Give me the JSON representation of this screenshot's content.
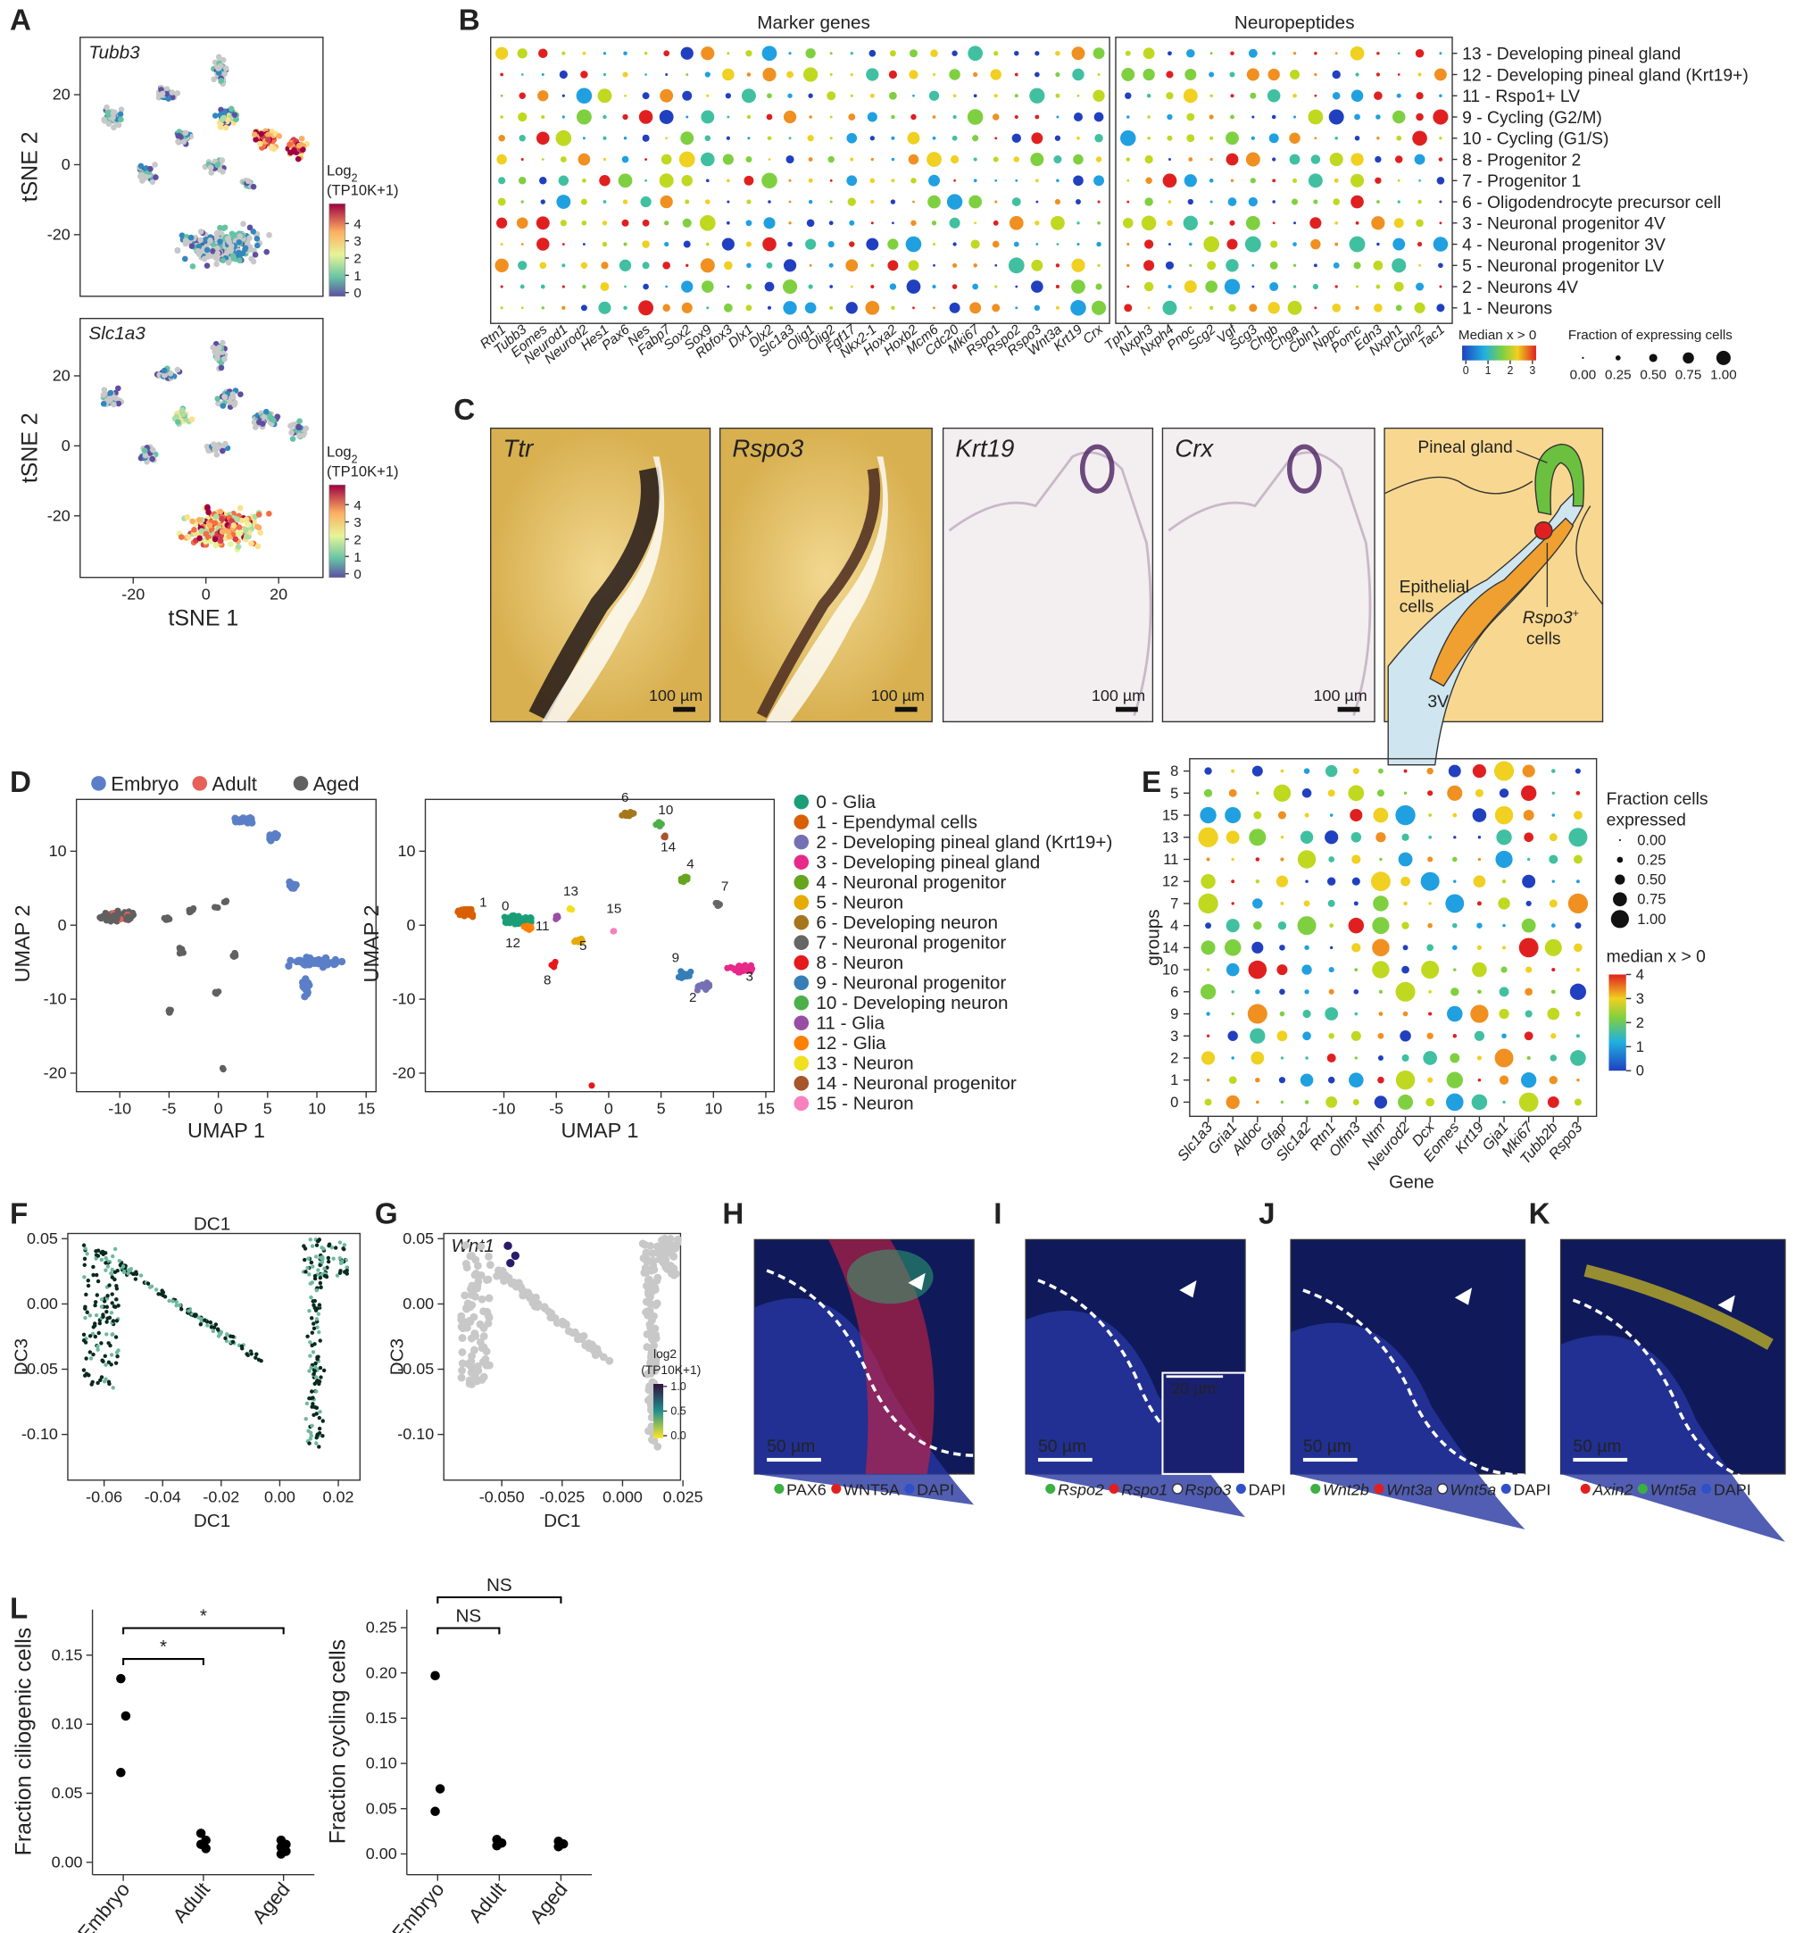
{
  "panels": {
    "A": {
      "label": "A",
      "xlabel": "tSNE 1",
      "xticks": [
        -20,
        0,
        20
      ],
      "xlim": [
        -34.6,
        32.2
      ],
      "ylim": [
        -37.6,
        36.4
      ],
      "plots": [
        {
          "gene": "Tubb3",
          "ylabel": "tSNE 2",
          "yticks": [
            20,
            0,
            -20
          ],
          "legend_title": "Log",
          "legend_sub": "2",
          "legend_unit": "(TP10K+1)",
          "legend_ticks": [
            4,
            3,
            2,
            1,
            0
          ]
        },
        {
          "gene": "Slc1a3",
          "ylabel": "tSNE 2",
          "yticks": [
            20,
            0,
            -20
          ],
          "legend_title": "Log",
          "legend_sub": "2",
          "legend_unit": "(TP10K+1)",
          "legend_ticks": [
            4,
            3,
            2,
            1,
            0
          ]
        }
      ]
    },
    "B": {
      "label": "B",
      "left_title": "Marker genes",
      "right_title": "Neuropeptides",
      "marker_genes": [
        "Rtn1",
        "Tubb3",
        "Eomes",
        "Neurod1",
        "Neurod2",
        "Hes1",
        "Pax6",
        "Nes",
        "Fabp7",
        "Sox2",
        "Sox9",
        "Rbfox3",
        "Dlx1",
        "Dlx2",
        "Slc1a3",
        "Olig1",
        "Olig2",
        "Fgf17",
        "Nkx2-1",
        "Hoxa2",
        "Hoxb2",
        "Mcm6",
        "Cdc20",
        "Mki67",
        "Rspo1",
        "Rspo2",
        "Rspo3",
        "Wnt3a",
        "Krt19",
        "Crx"
      ],
      "neuropeptides": [
        "Tph1",
        "Nxph3",
        "Nxph4",
        "Pnoc",
        "Scg2",
        "Vgf",
        "Scg3",
        "Chgb",
        "Chga",
        "Cbln1",
        "Nppc",
        "Pomc",
        "Edn3",
        "Nxph1",
        "Cbln2",
        "Tac1"
      ],
      "rows": [
        "13 - Developing pineal gland",
        "12 - Developing pineal gland (Krt19+)",
        "11 - Rspo1+ LV",
        "9 - Cycling (G2/M)",
        "10 - Cycling (G1/S)",
        "8 - Progenitor 2",
        "7 - Progenitor 1",
        "6 - Oligodendrocyte precursor cell",
        "3 - Neuronal progenitor 4V",
        "4 - Neuronal progenitor 3V",
        "5 - Neuronal progenitor LV",
        "2 - Neurons 4V",
        "1 - Neurons"
      ],
      "color_title": "Median x > 0",
      "color_ticks": [
        0,
        1,
        2,
        3
      ],
      "size_title": "Fraction of expressing cells",
      "size_ticks": [
        {
          "value": 0,
          "label": "0.00"
        },
        {
          "value": 0.25,
          "label": "0.25"
        },
        {
          "value": 0.5,
          "label": "0.50"
        },
        {
          "value": 0.75,
          "label": "0.75"
        },
        {
          "value": 1,
          "label": "1.00"
        }
      ]
    },
    "C": {
      "label": "C",
      "images": [
        "Ttr",
        "Rspo3",
        "Krt19",
        "Crx"
      ],
      "scale": "100 µm",
      "diagram": {
        "pineal": "Pineal gland",
        "epithelial": "Epithelial",
        "epithelial2": "cells",
        "rspo": "Rspo3",
        "rspo_sup": "+",
        "rspo2": "cells",
        "ventricle": "3V"
      }
    },
    "D": {
      "label": "D",
      "xlabel": "UMAP 1",
      "ylabel": "UMAP 2",
      "ages": [
        {
          "name": "Embryo",
          "color": "#5b7fc7"
        },
        {
          "name": "Adult",
          "color": "#e8605a"
        },
        {
          "name": "Aged",
          "color": "#606060"
        }
      ],
      "plots": [
        {
          "xlim": [
            -14.4,
            16
          ],
          "ylim": [
            -22.5,
            17
          ],
          "xticks": [
            -10,
            -5,
            0,
            5,
            10,
            15
          ],
          "yticks": [
            10,
            0,
            -10,
            -20
          ]
        },
        {
          "xlim": [
            -17.5,
            15.8
          ],
          "ylim": [
            -22.5,
            17
          ],
          "xticks": [
            -10,
            -5,
            0,
            5,
            10,
            15
          ],
          "yticks": [
            10,
            0,
            -10,
            -20
          ]
        }
      ],
      "clusters": [
        {
          "id": "0",
          "label": "0 - Glia",
          "color": "#1b9e77"
        },
        {
          "id": "1",
          "label": "1 - Ependymal cells",
          "color": "#d95f02"
        },
        {
          "id": "2",
          "label": "2 - Developing pineal gland (Krt19+)",
          "color": "#7570b3"
        },
        {
          "id": "3",
          "label": "3 - Developing pineal gland",
          "color": "#e7298a"
        },
        {
          "id": "4",
          "label": "4 - Neuronal progenitor",
          "color": "#66a61e"
        },
        {
          "id": "5",
          "label": "5 - Neuron",
          "color": "#e6ab02"
        },
        {
          "id": "6",
          "label": "6 - Developing neuron",
          "color": "#a6761d"
        },
        {
          "id": "7",
          "label": "7 - Neuronal progenitor",
          "color": "#666666"
        },
        {
          "id": "8",
          "label": "8 - Neuron",
          "color": "#e41a1c"
        },
        {
          "id": "9",
          "label": "9 - Neuronal progenitor",
          "color": "#377eb8"
        },
        {
          "id": "10",
          "label": "10 - Developing neuron",
          "color": "#4daf4a"
        },
        {
          "id": "11",
          "label": "11 - Glia",
          "color": "#984ea3"
        },
        {
          "id": "12",
          "label": "12 - Glia",
          "color": "#ff7f00"
        },
        {
          "id": "13",
          "label": "13 - Neuron",
          "color": "#f0e020"
        },
        {
          "id": "14",
          "label": "14 - Neuronal progenitor",
          "color": "#a65628"
        },
        {
          "id": "15",
          "label": "15 - Neuron",
          "color": "#f781bf"
        }
      ]
    },
    "E": {
      "label": "E",
      "groups": [
        "8",
        "5",
        "15",
        "13",
        "11",
        "12",
        "7",
        "4",
        "14",
        "10",
        "6",
        "9",
        "3",
        "2",
        "1",
        "0"
      ],
      "genes": [
        "Slc1a3",
        "Gria1",
        "Aldoc",
        "Gfap",
        "Slc1a2",
        "Rtn1",
        "Olfm3",
        "Ntm",
        "Neurod2",
        "Dcx",
        "Eomes",
        "Krt19",
        "Gja1",
        "Mki67",
        "Tubb2b",
        "Rspo3"
      ],
      "xlabel": "Gene",
      "ylabel": "groups",
      "size_title": "Fraction cells",
      "size_title2": "expressed",
      "size_ticks": [
        {
          "value": 0,
          "label": "0.00"
        },
        {
          "value": 0.25,
          "label": "0.25"
        },
        {
          "value": 0.5,
          "label": "0.50"
        },
        {
          "value": 0.75,
          "label": "0.75"
        },
        {
          "value": 1,
          "label": "1.00"
        }
      ],
      "color_title": "median x > 0",
      "color_ticks": [
        4,
        3,
        2,
        1,
        0
      ]
    },
    "F": {
      "label": "F",
      "title": "DC1",
      "xlabel": "DC1",
      "ylabel": "DC3",
      "xlim": [
        -0.0724,
        0.0274
      ],
      "ylim": [
        -0.135,
        0.054
      ],
      "xticks": [
        -0.06,
        -0.04,
        -0.02,
        {
          "value": 0,
          "label": "0.00"
        },
        0.02
      ],
      "yticks": [
        0.05,
        {
          "value": 0,
          "label": "0.00"
        },
        -0.05,
        {
          "value": -0.1,
          "label": "-0.10"
        }
      ]
    },
    "G": {
      "label": "G",
      "gene": "Wnt1",
      "xlabel": "DC1",
      "ylabel": "DC3",
      "xlim": [
        -0.074,
        0.024
      ],
      "ylim": [
        -0.135,
        0.054
      ],
      "xticks": [
        {
          "value": -0.05,
          "label": "-0.050"
        },
        -0.025,
        {
          "value": 0,
          "label": "0.000"
        },
        0.025
      ],
      "yticks": [
        0.05,
        {
          "value": 0,
          "label": "0.00"
        },
        -0.05,
        {
          "value": -0.1,
          "label": "-0.10"
        }
      ],
      "legend_title": "log2",
      "legend_unit": "(TP10K+1)",
      "legend_ticks": [
        {
          "value": 1,
          "label": "1.0"
        },
        0.5,
        {
          "value": 0,
          "label": "0.0"
        }
      ]
    },
    "H": {
      "label": "H",
      "scale": "50 µm",
      "legend": [
        {
          "name": "PAX6",
          "color": "#3cb043"
        },
        {
          "name": "WNT5A",
          "color": "#e02020"
        },
        {
          "name": "DAPI",
          "color": "#3050c8"
        }
      ]
    },
    "I": {
      "label": "I",
      "scale": "50 µm",
      "inset_scale": "20 µm",
      "legend": [
        {
          "name": "Rspo2",
          "color": "#3cb043"
        },
        {
          "name": "Rspo1",
          "color": "#e02020"
        },
        {
          "name": "Rspo3",
          "color": "#ffffff"
        },
        {
          "name": "DAPI",
          "color": "#3050c8"
        }
      ]
    },
    "J": {
      "label": "J",
      "scale": "50 µm",
      "legend": [
        {
          "name": "Wnt2b",
          "color": "#3cb043"
        },
        {
          "name": "Wnt3a",
          "color": "#e02020"
        },
        {
          "name": "Wnt5a",
          "color": "#ffffff"
        },
        {
          "name": "DAPI",
          "color": "#3050c8"
        }
      ]
    },
    "K": {
      "label": "K",
      "scale": "50 µm",
      "legend": [
        {
          "name": "Axin2",
          "color": "#e02020"
        },
        {
          "name": "Wnt5a",
          "color": "#3cb043"
        },
        {
          "name": "DAPI",
          "color": "#3050c8"
        }
      ]
    },
    "L": {
      "label": "L",
      "categories": [
        "Embryo",
        "Adult",
        "Aged"
      ],
      "plots": [
        {
          "ylabel": "Fraction ciliogenic cells",
          "ylim": [
            -0.009,
            0.183
          ],
          "yticks": [
            0.15,
            {
              "value": 0.1,
              "label": "0.10"
            },
            0.05,
            {
              "value": 0,
              "label": "0.00"
            }
          ],
          "points": [
            [
              0.133,
              0.106,
              0.065
            ],
            [
              0.021,
              0.016,
              0.013,
              0.01
            ],
            [
              0.016,
              0.013,
              0.011,
              0.008,
              0.006
            ]
          ],
          "comparisons": [
            {
              "pair": [
                "Embryo",
                "Adult"
              ],
              "label": "*"
            },
            {
              "pair": [
                "Embryo",
                "Aged"
              ],
              "label": "*"
            }
          ]
        },
        {
          "ylabel": "Fraction cycling cells",
          "ylim": [
            -0.023,
            0.27
          ],
          "yticks": [
            0.25,
            {
              "value": 0.2,
              "label": "0.20"
            },
            0.15,
            {
              "value": 0.1,
              "label": "0.10"
            },
            0.05,
            {
              "value": 0,
              "label": "0.00"
            }
          ],
          "points": [
            [
              0.197,
              0.072,
              0.047
            ],
            [
              0.016,
              0.012,
              0.009
            ],
            [
              0.014,
              0.011,
              0.008
            ]
          ],
          "comparisons": [
            {
              "pair": [
                "Embryo",
                "Adult"
              ],
              "label": "NS"
            },
            {
              "pair": [
                "Embryo",
                "Aged"
              ],
              "label": "NS"
            }
          ]
        }
      ]
    }
  }
}
